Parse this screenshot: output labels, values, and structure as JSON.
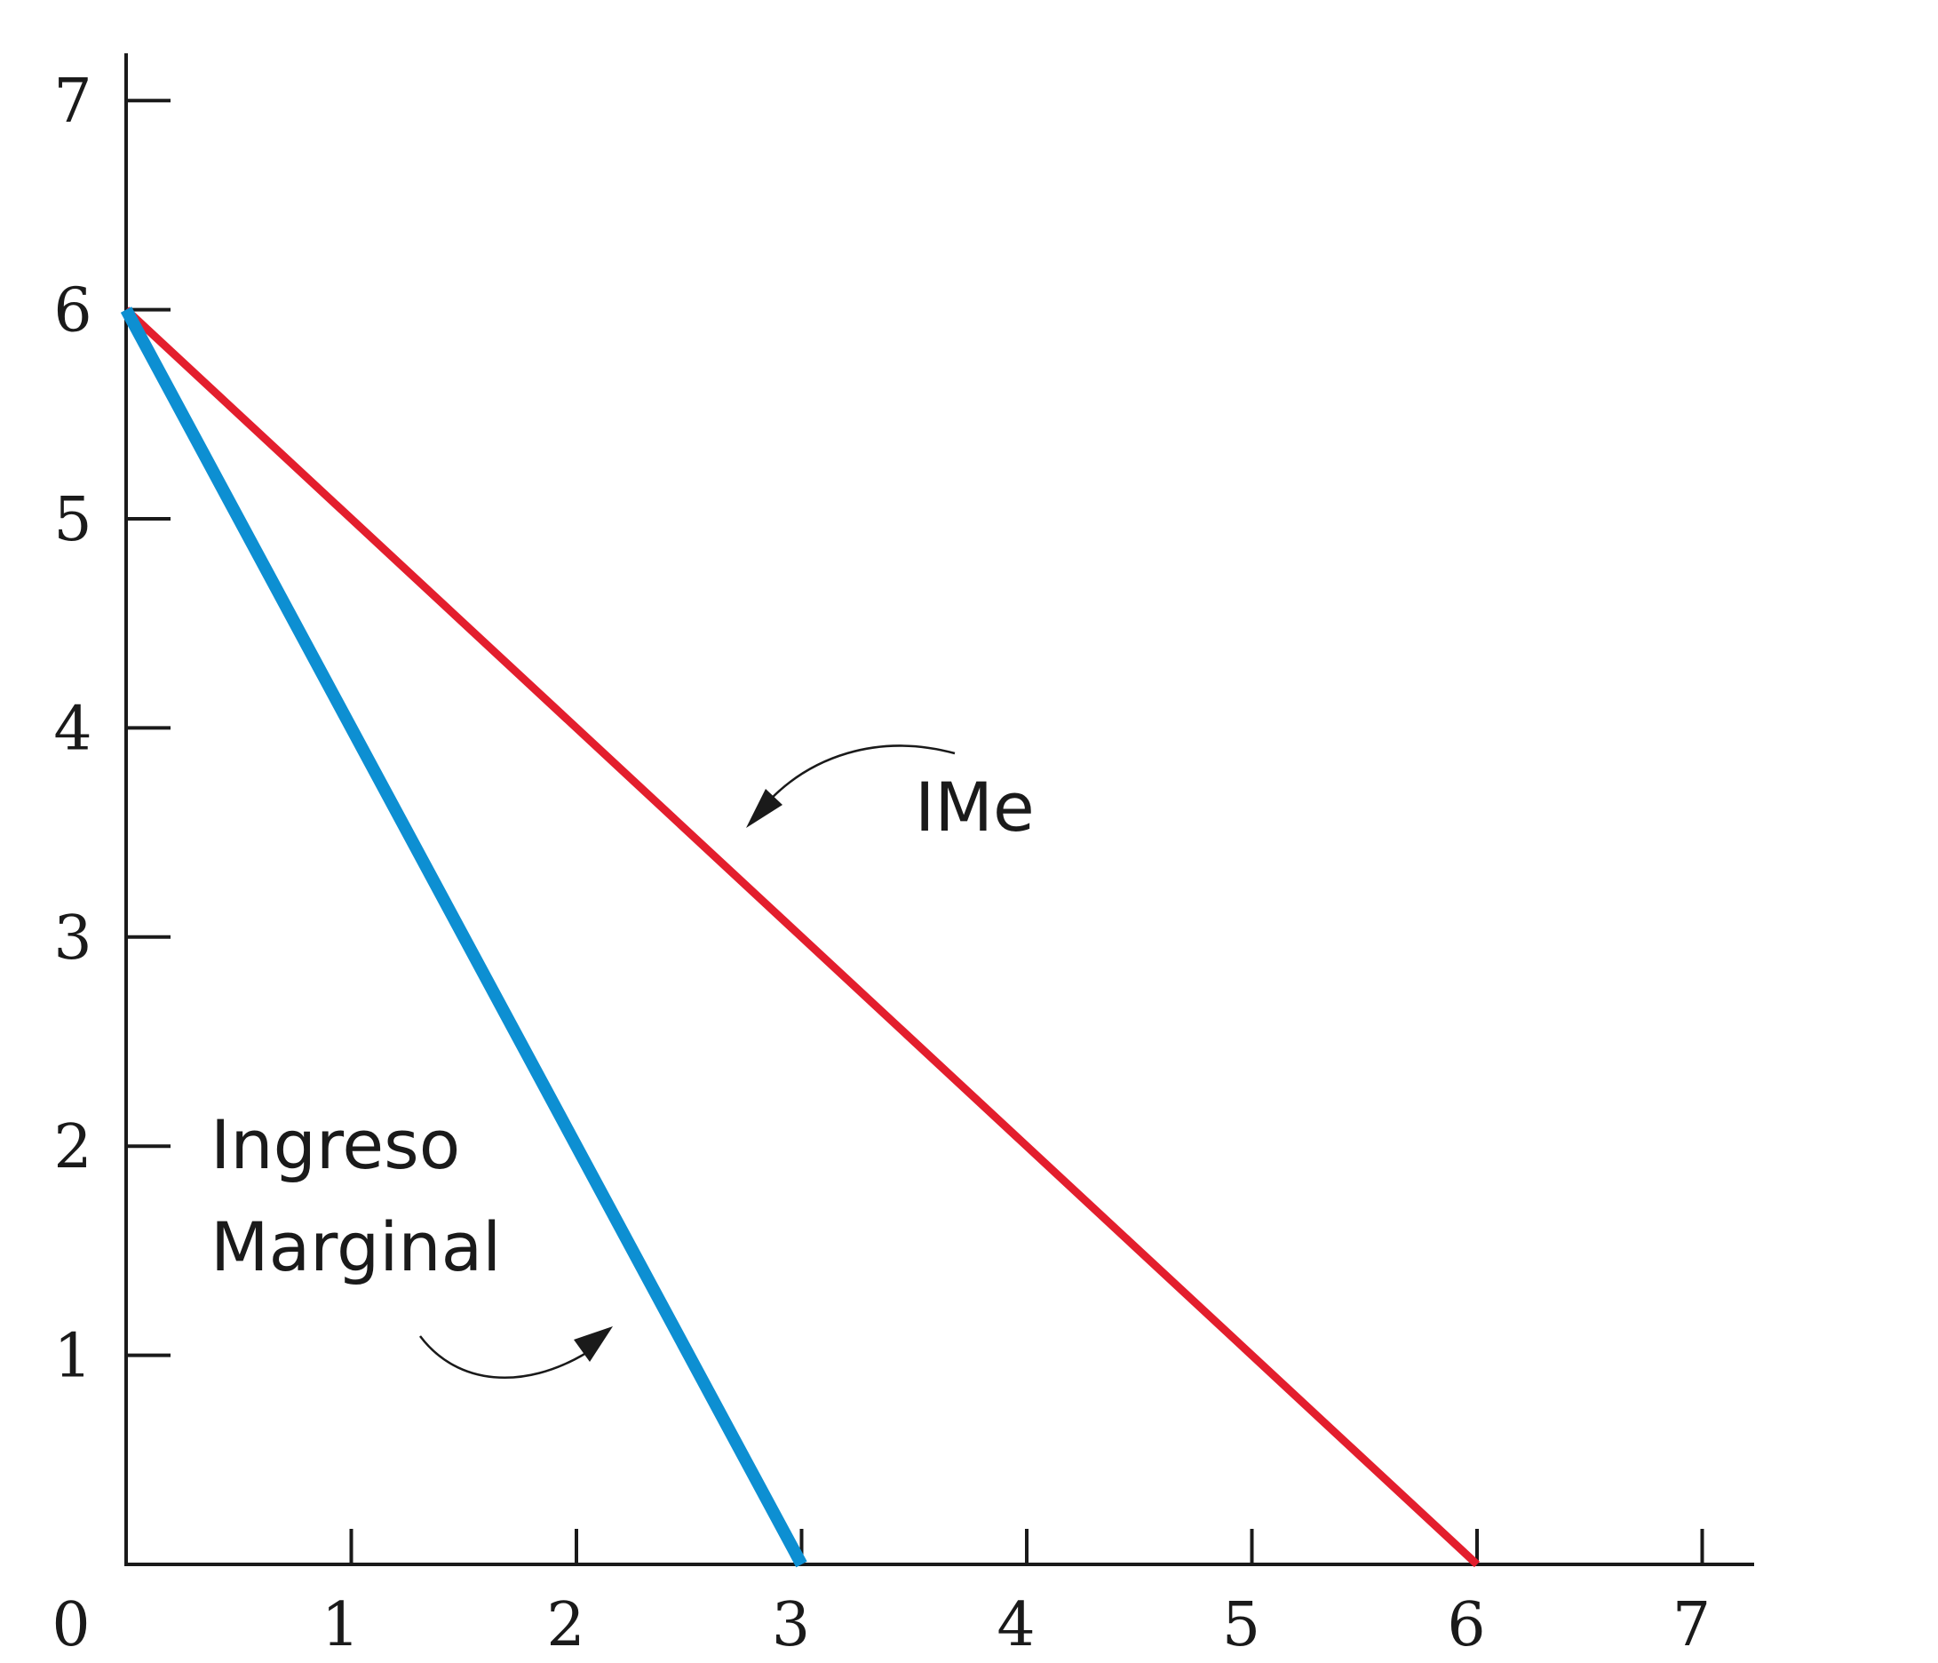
{
  "chart_data": {
    "type": "line",
    "xlim": [
      0,
      7
    ],
    "ylim": [
      0,
      7
    ],
    "x_ticks": [
      "0",
      "1",
      "2",
      "3",
      "4",
      "5",
      "6",
      "7"
    ],
    "y_ticks": [
      "1",
      "2",
      "3",
      "4",
      "5",
      "6",
      "7"
    ],
    "grid": false,
    "series": [
      {
        "name": "IMe",
        "color": "#e31e2d",
        "points": [
          [
            0,
            6
          ],
          [
            6,
            0
          ]
        ]
      },
      {
        "name": "Ingreso Marginal",
        "color": "#0d8fd2",
        "points": [
          [
            0,
            6
          ],
          [
            3,
            0
          ]
        ]
      }
    ],
    "annotations": {
      "ime_label": "IMe",
      "img_label_line1": "Ingreso",
      "img_label_line2": "Marginal"
    }
  }
}
